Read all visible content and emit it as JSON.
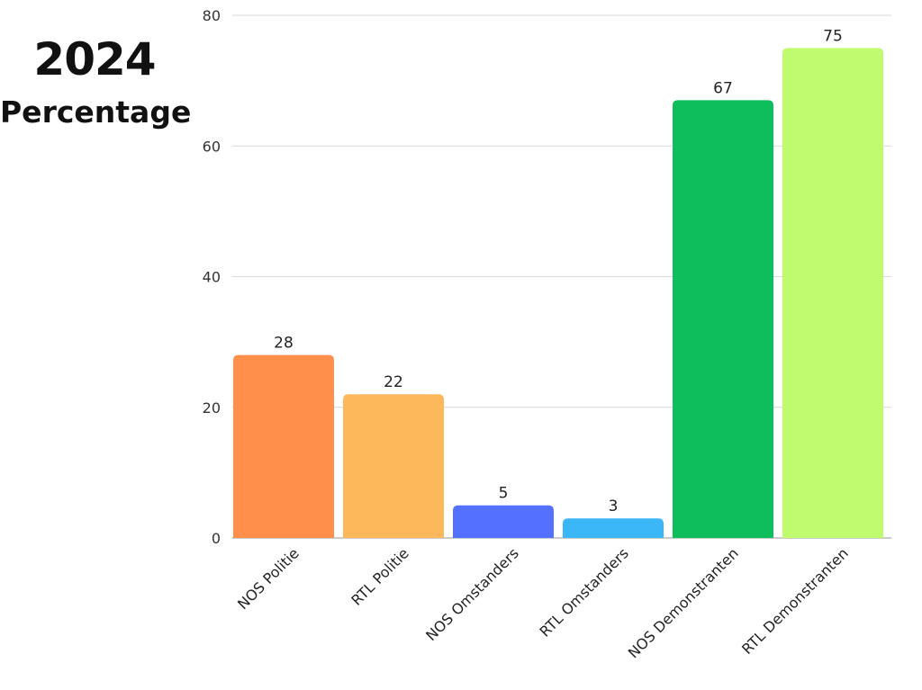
{
  "heading": {
    "year": "2024",
    "unit": "Percentage"
  },
  "chart_data": {
    "type": "bar",
    "categories": [
      "NOS Politie",
      "RTL Politie",
      "NOS Omstanders",
      "RTL Omstanders",
      "NOS Demonstranten",
      "RTL Demonstranten"
    ],
    "values": [
      28,
      22,
      5,
      3,
      67,
      75
    ],
    "colors": [
      "#ff8f4b",
      "#fdb85b",
      "#5470ff",
      "#3bb6f7",
      "#0ebd5c",
      "#c0fa6e"
    ],
    "ylim": [
      0,
      80
    ],
    "yticks": [
      0,
      20,
      40,
      60,
      80
    ],
    "grid": true,
    "data_labels": true
  }
}
